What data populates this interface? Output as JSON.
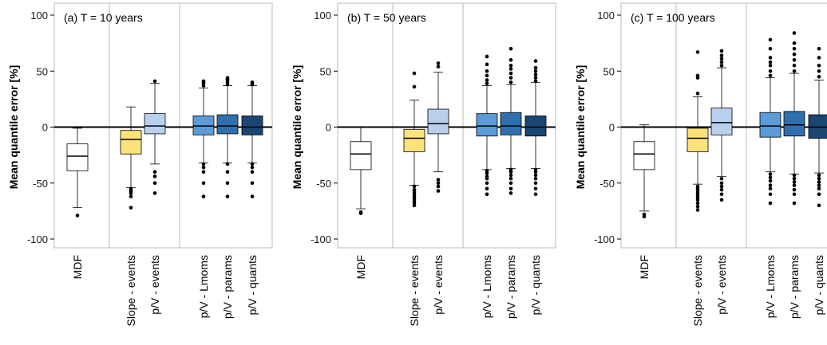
{
  "chart_data": [
    {
      "type": "box",
      "title": "(a) T = 10 years",
      "ylabel": "Mean quantile error [%]",
      "ylim": [
        -108,
        108
      ],
      "yticks": [
        -100,
        -50,
        0,
        50,
        100
      ],
      "tick_labels": [
        "-100",
        "-50",
        "0",
        "50",
        "100"
      ],
      "categories": [
        "MDF",
        "Slope - events",
        "p/V - events",
        "p/V - Lmoms",
        "p/V - params",
        "p/V - quants"
      ],
      "boxes": [
        {
          "q1": -39,
          "median": -26,
          "q3": -15,
          "whisker_low": -72,
          "whisker_high": -1,
          "outliers": [
            -79
          ]
        },
        {
          "q1": -24,
          "median": -11,
          "q3": -3,
          "whisker_low": -54,
          "whisker_high": 18,
          "outliers": [
            -55,
            -57,
            -59,
            -62,
            -72
          ]
        },
        {
          "q1": -6,
          "median": 1,
          "q3": 12,
          "whisker_low": -33,
          "whisker_high": 39,
          "outliers": [
            -40,
            -44,
            -50,
            -59,
            41
          ]
        },
        {
          "q1": -7,
          "median": 1,
          "q3": 10,
          "whisker_low": -32,
          "whisker_high": 35,
          "outliers": [
            -33,
            -36,
            -40,
            -50,
            -62,
            37,
            39,
            40,
            41
          ]
        },
        {
          "q1": -6,
          "median": 1,
          "q3": 11,
          "whisker_low": -32,
          "whisker_high": 37,
          "outliers": [
            -33,
            -40,
            -50,
            -62,
            38,
            40,
            42,
            43,
            44
          ]
        },
        {
          "q1": -7,
          "median": 0,
          "q3": 10,
          "whisker_low": -32,
          "whisker_high": 37,
          "outliers": [
            -33,
            -36,
            -40,
            -50,
            -62,
            38,
            39,
            40
          ]
        }
      ]
    },
    {
      "type": "box",
      "title": "(b) T = 50 years",
      "ylabel": "Mean quantile error [%]",
      "ylim": [
        -108,
        108
      ],
      "yticks": [
        -100,
        -50,
        0,
        50,
        100
      ],
      "tick_labels": [
        "-100",
        "-50",
        "0",
        "50",
        "100"
      ],
      "categories": [
        "MDF",
        "Slope - events",
        "p/V - events",
        "p/V - Lmoms",
        "p/V - params",
        "p/V - quants"
      ],
      "boxes": [
        {
          "q1": -38,
          "median": -24,
          "q3": -13,
          "whisker_low": -73,
          "whisker_high": 0,
          "outliers": [
            -76,
            -77
          ]
        },
        {
          "q1": -22,
          "median": -10,
          "q3": -2,
          "whisker_low": -52,
          "whisker_high": 24,
          "outliers": [
            -53,
            -56,
            -58,
            -60,
            -62,
            -64,
            -66,
            -68,
            -70,
            36,
            48
          ]
        },
        {
          "q1": -6,
          "median": 3,
          "q3": 16,
          "whisker_low": -40,
          "whisker_high": 49,
          "outliers": [
            -47,
            -50,
            -53,
            -57,
            54,
            57
          ]
        },
        {
          "q1": -8,
          "median": 1,
          "q3": 12,
          "whisker_low": -38,
          "whisker_high": 37,
          "outliers": [
            -39,
            -41,
            -44,
            -46,
            -50,
            -55,
            -60,
            39,
            42,
            46,
            50,
            56,
            63
          ]
        },
        {
          "q1": -7,
          "median": 1,
          "q3": 13,
          "whisker_low": -37,
          "whisker_high": 38,
          "outliers": [
            -38,
            -40,
            -43,
            -46,
            -50,
            -55,
            -59,
            40,
            44,
            48,
            52,
            55,
            60,
            70
          ]
        },
        {
          "q1": -8,
          "median": 0,
          "q3": 10,
          "whisker_low": -37,
          "whisker_high": 40,
          "outliers": [
            -38,
            -40,
            -43,
            -46,
            -50,
            -55,
            -60,
            41,
            44,
            47,
            50,
            53,
            59
          ]
        }
      ]
    },
    {
      "type": "box",
      "title": "(c) T = 100 years",
      "ylabel": "Mean quantile error [%]",
      "ylim": [
        -108,
        108
      ],
      "yticks": [
        -100,
        -50,
        0,
        50,
        100
      ],
      "tick_labels": [
        "-100",
        "-50",
        "0",
        "50",
        "100"
      ],
      "categories": [
        "MDF",
        "Slope - events",
        "p/V - events",
        "p/V - Lmoms",
        "p/V - params",
        "p/V - quants"
      ],
      "boxes": [
        {
          "q1": -38,
          "median": -24,
          "q3": -13,
          "whisker_low": -75,
          "whisker_high": 2,
          "outliers": [
            -78,
            -80
          ]
        },
        {
          "q1": -22,
          "median": -10,
          "q3": -1,
          "whisker_low": -51,
          "whisker_high": 27,
          "outliers": [
            -53,
            -55,
            -57,
            -59,
            -61,
            -63,
            -65,
            -68,
            -71,
            -74,
            30,
            44,
            46,
            67
          ]
        },
        {
          "q1": -7,
          "median": 4,
          "q3": 17,
          "whisker_low": -44,
          "whisker_high": 53,
          "outliers": [
            -46,
            -50,
            -53,
            -56,
            -60,
            -65,
            55,
            58,
            61,
            64,
            68
          ]
        },
        {
          "q1": -9,
          "median": 1,
          "q3": 13,
          "whisker_low": -40,
          "whisker_high": 44,
          "outliers": [
            -42,
            -45,
            -48,
            -52,
            -55,
            -60,
            -68,
            46,
            50,
            55,
            58,
            62,
            70,
            78
          ]
        },
        {
          "q1": -8,
          "median": 2,
          "q3": 14,
          "whisker_low": -42,
          "whisker_high": 48,
          "outliers": [
            -43,
            -46,
            -49,
            -52,
            -56,
            -60,
            -68,
            50,
            55,
            60,
            65,
            70,
            75,
            84
          ]
        },
        {
          "q1": -10,
          "median": 0,
          "q3": 11,
          "whisker_low": -41,
          "whisker_high": 42,
          "outliers": [
            -43,
            -46,
            -49,
            -52,
            -55,
            -60,
            -70,
            45,
            50,
            55,
            62,
            70
          ]
        }
      ]
    }
  ],
  "colors": {
    "box_fills": [
      "#ffffff",
      "#fde27b",
      "#b8d0ee",
      "#5a9bd8",
      "#2f6fad",
      "#1b4572"
    ],
    "axis": "#000000",
    "frame": "#bbbbbb",
    "outlier": "#000000"
  }
}
